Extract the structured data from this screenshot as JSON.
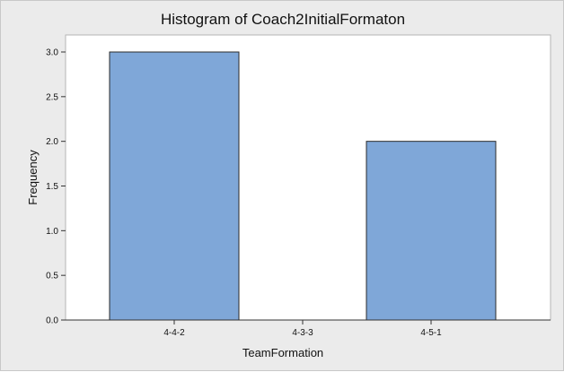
{
  "chart_data": {
    "type": "bar",
    "title": "Histogram of Coach2InitialFormaton",
    "xlabel": "TeamFormation",
    "ylabel": "Frequency",
    "categories": [
      "4-4-2",
      "4-3-3",
      "4-5-1"
    ],
    "values": [
      3,
      0,
      2
    ],
    "ylim": [
      0,
      3.0
    ],
    "yticks": [
      "0.0",
      "0.5",
      "1.0",
      "1.5",
      "2.0",
      "2.5",
      "3.0"
    ],
    "grid": false,
    "colors": {
      "bar_fill": "#7fa7d8",
      "bar_stroke": "#2b2b2b",
      "plot_bg": "#ffffff",
      "frame_bg": "#ebebeb"
    }
  }
}
